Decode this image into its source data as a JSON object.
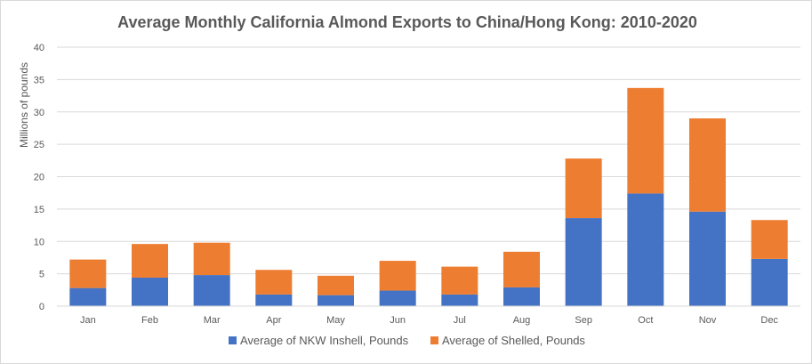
{
  "chart_data": {
    "type": "bar",
    "stacked": true,
    "title": "Average Monthly California Almond Exports to China/Hong Kong: 2010-2020",
    "xlabel": "",
    "ylabel": "Millions of pounds",
    "ylim": [
      0,
      40
    ],
    "yticks": [
      0,
      5,
      10,
      15,
      20,
      25,
      30,
      35,
      40
    ],
    "grid": true,
    "legend_position": "bottom",
    "categories": [
      "Jan",
      "Feb",
      "Mar",
      "Apr",
      "May",
      "Jun",
      "Jul",
      "Aug",
      "Sep",
      "Oct",
      "Nov",
      "Dec"
    ],
    "series": [
      {
        "name": "Average of NKW Inshell, Pounds",
        "color": "#4472C4",
        "values": [
          2.8,
          4.4,
          4.8,
          1.8,
          1.7,
          2.4,
          1.8,
          2.9,
          13.6,
          17.4,
          14.6,
          7.3
        ]
      },
      {
        "name": "Average of Shelled, Pounds",
        "color": "#ED7D31",
        "values": [
          4.4,
          5.2,
          5.0,
          3.8,
          3.0,
          4.6,
          4.3,
          5.5,
          9.2,
          16.3,
          14.4,
          6.0
        ]
      }
    ]
  }
}
